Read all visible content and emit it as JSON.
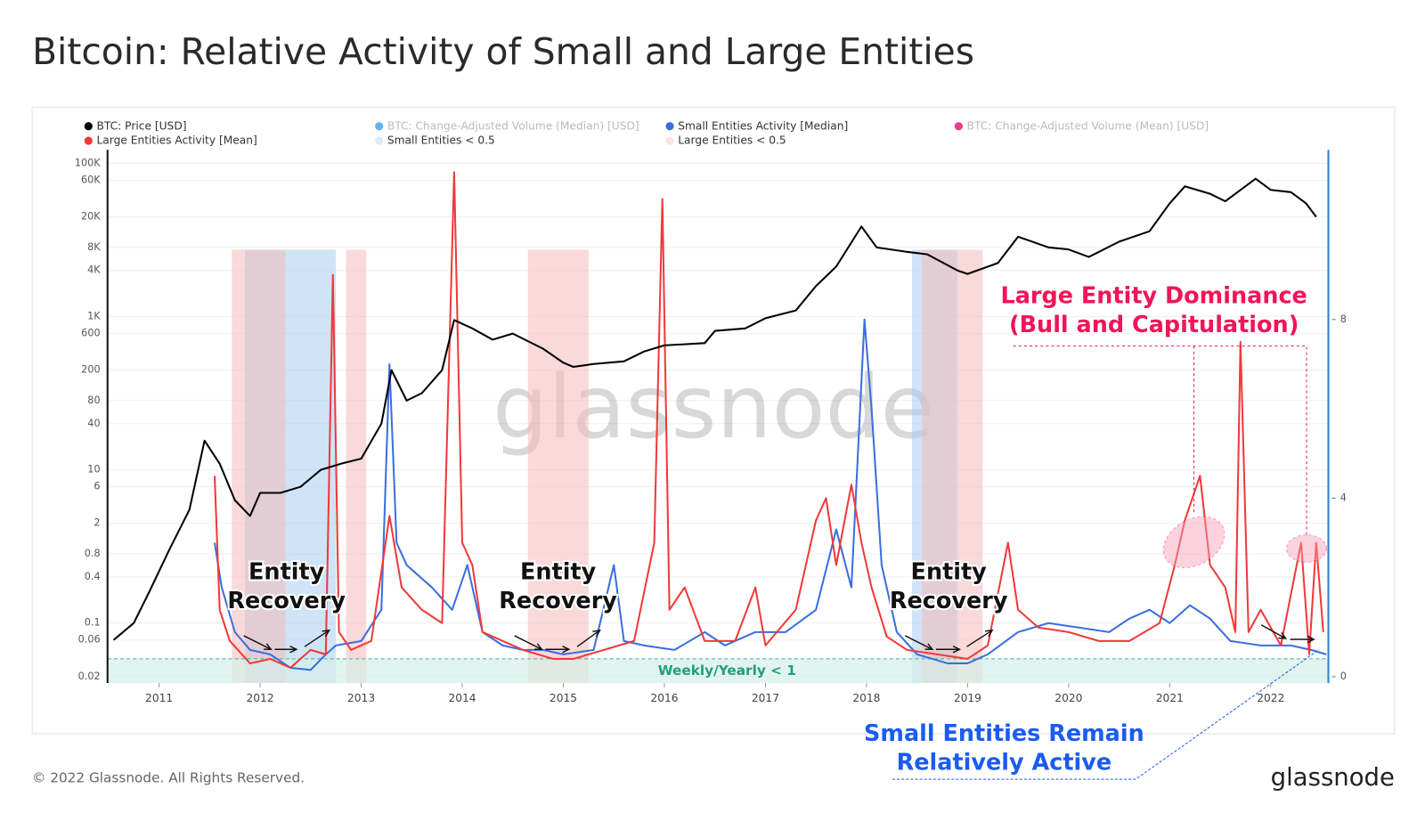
{
  "chart_data": {
    "type": "line",
    "title": "Bitcoin: Relative Activity of Small and Large Entities",
    "footer": "© 2022 Glassnode. All Rights Reserved.",
    "logo": "glassnode",
    "watermark": "glassnode",
    "xlim": [
      2010.49,
      2022.57
    ],
    "xticks": [
      2011,
      2012,
      2013,
      2014,
      2015,
      2016,
      2017,
      2018,
      2019,
      2020,
      2021,
      2022
    ],
    "ylog": true,
    "ylim": [
      0.0165,
      150000
    ],
    "yticks": [
      {
        "value": 100000,
        "label": "100K"
      },
      {
        "value": 60000,
        "label": "60K"
      },
      {
        "value": 20000,
        "label": "20K"
      },
      {
        "value": 8000,
        "label": "8K"
      },
      {
        "value": 4000,
        "label": "4K"
      },
      {
        "value": 1000,
        "label": "1K"
      },
      600,
      200,
      80,
      40,
      10,
      6,
      2,
      0.8,
      0.4,
      0.1,
      0.06,
      0.02
    ],
    "y2lim": [
      -0.14,
      11.8
    ],
    "y2ticks": [
      0,
      4,
      8
    ],
    "grid": true,
    "series": [
      {
        "name": "BTC: Price [USD]",
        "color": "#000000",
        "axis": "y",
        "x": [
          2010.55,
          2010.75,
          2010.9,
          2011.1,
          2011.3,
          2011.45,
          2011.6,
          2011.75,
          2011.9,
          2012.0,
          2012.2,
          2012.4,
          2012.6,
          2012.8,
          2013.0,
          2013.2,
          2013.3,
          2013.45,
          2013.6,
          2013.8,
          2013.92,
          2014.1,
          2014.3,
          2014.5,
          2014.8,
          2015.0,
          2015.1,
          2015.3,
          2015.6,
          2015.8,
          2016.0,
          2016.4,
          2016.5,
          2016.8,
          2017.0,
          2017.3,
          2017.5,
          2017.7,
          2017.95,
          2018.1,
          2018.4,
          2018.6,
          2018.9,
          2019.0,
          2019.3,
          2019.5,
          2019.8,
          2020.0,
          2020.2,
          2020.5,
          2020.8,
          2021.0,
          2021.15,
          2021.4,
          2021.55,
          2021.85,
          2022.0,
          2022.2,
          2022.35,
          2022.45
        ],
        "values": [
          0.06,
          0.1,
          0.25,
          0.9,
          3,
          24,
          12,
          4,
          2.5,
          5,
          5,
          6,
          10,
          12,
          14,
          40,
          200,
          80,
          100,
          200,
          900,
          700,
          500,
          600,
          380,
          250,
          220,
          240,
          260,
          350,
          420,
          450,
          650,
          700,
          950,
          1200,
          2500,
          4500,
          15000,
          8000,
          7000,
          6500,
          4000,
          3600,
          5000,
          11000,
          8000,
          7500,
          6000,
          9500,
          13000,
          30000,
          50000,
          40000,
          32000,
          63000,
          45000,
          42000,
          30000,
          20000
        ]
      },
      {
        "name": "Large Entities Activity [Mean]",
        "color": "#f03a3a",
        "axis": "y2",
        "x": [
          2011.55,
          2011.6,
          2011.7,
          2011.9,
          2012.1,
          2012.3,
          2012.5,
          2012.65,
          2012.72,
          2012.78,
          2012.9,
          2013.1,
          2013.28,
          2013.4,
          2013.6,
          2013.8,
          2013.92,
          2014.0,
          2014.1,
          2014.2,
          2014.4,
          2014.6,
          2014.9,
          2015.1,
          2015.4,
          2015.7,
          2015.9,
          2015.98,
          2016.05,
          2016.2,
          2016.4,
          2016.7,
          2016.9,
          2017.0,
          2017.3,
          2017.5,
          2017.6,
          2017.7,
          2017.85,
          2017.95,
          2018.05,
          2018.2,
          2018.4,
          2018.7,
          2019.0,
          2019.2,
          2019.4,
          2019.5,
          2019.7,
          2020.0,
          2020.3,
          2020.6,
          2020.9,
          2021.05,
          2021.15,
          2021.3,
          2021.4,
          2021.55,
          2021.65,
          2021.7,
          2021.78,
          2021.9,
          2022.1,
          2022.3,
          2022.38,
          2022.45,
          2022.52
        ],
        "values": [
          4.5,
          1.5,
          0.8,
          0.3,
          0.4,
          0.2,
          0.6,
          0.5,
          9.0,
          1.0,
          0.6,
          0.8,
          3.6,
          2.0,
          1.5,
          1.2,
          11.3,
          3.0,
          2.5,
          1.0,
          0.8,
          0.6,
          0.4,
          0.4,
          0.6,
          0.8,
          3.0,
          10.7,
          1.5,
          2.0,
          0.8,
          0.8,
          2.0,
          0.7,
          1.5,
          3.5,
          4.0,
          2.5,
          4.3,
          3.0,
          2.0,
          0.9,
          0.6,
          0.5,
          0.4,
          0.7,
          3.0,
          1.5,
          1.1,
          1.0,
          0.8,
          0.8,
          1.2,
          2.5,
          3.5,
          4.5,
          2.5,
          2.0,
          1.0,
          7.5,
          1.0,
          1.5,
          0.7,
          3.0,
          0.5,
          3.0,
          1.0
        ]
      },
      {
        "name": "Small Entities Activity [Median]",
        "color": "#3a6fe0",
        "axis": "y2",
        "x": [
          2011.55,
          2011.62,
          2011.75,
          2011.9,
          2012.1,
          2012.3,
          2012.5,
          2012.65,
          2012.75,
          2013.0,
          2013.2,
          2013.28,
          2013.35,
          2013.45,
          2013.7,
          2013.9,
          2014.05,
          2014.2,
          2014.4,
          2014.6,
          2014.8,
          2015.0,
          2015.3,
          2015.5,
          2015.6,
          2015.8,
          2016.1,
          2016.4,
          2016.6,
          2016.9,
          2017.2,
          2017.5,
          2017.7,
          2017.85,
          2017.98,
          2018.05,
          2018.15,
          2018.3,
          2018.5,
          2018.8,
          2019.0,
          2019.2,
          2019.5,
          2019.8,
          2020.1,
          2020.4,
          2020.6,
          2020.8,
          2021.0,
          2021.2,
          2021.4,
          2021.6,
          2021.9,
          2022.2,
          2022.4,
          2022.55
        ],
        "values": [
          3.0,
          2.0,
          1.0,
          0.6,
          0.5,
          0.2,
          0.15,
          0.5,
          0.7,
          0.8,
          1.5,
          7.0,
          3.0,
          2.5,
          2.0,
          1.5,
          2.5,
          1.0,
          0.7,
          0.6,
          0.6,
          0.5,
          0.6,
          2.5,
          0.8,
          0.7,
          0.6,
          1.0,
          0.7,
          1.0,
          1.0,
          1.5,
          3.3,
          2.0,
          8.0,
          6.0,
          2.5,
          1.0,
          0.5,
          0.3,
          0.3,
          0.5,
          1.0,
          1.2,
          1.1,
          1.0,
          1.3,
          1.5,
          1.2,
          1.6,
          1.3,
          0.8,
          0.7,
          0.7,
          0.6,
          0.5
        ]
      }
    ],
    "bands": [
      {
        "name": "Small Entities < 0.5",
        "color": "#a8cdf0",
        "ranges": [
          [
            2011.85,
            2012.75
          ],
          [
            2018.45,
            2018.9
          ]
        ]
      },
      {
        "name": "Large Entities < 0.5",
        "color": "#f4b9b9",
        "ranges": [
          [
            2011.72,
            2012.25
          ],
          [
            2012.85,
            2013.05
          ],
          [
            2014.65,
            2015.25
          ],
          [
            2018.55,
            2019.15
          ]
        ]
      }
    ],
    "inactive_legend": [
      {
        "name": "BTC: Change-Adjusted Volume (Median) [USD]",
        "color": "#62b3ee"
      },
      {
        "name": "BTC: Change-Adjusted Volume (Mean) [USD]",
        "color": "#e83e8c"
      }
    ],
    "zone": {
      "label": "Weekly/Yearly  < 1",
      "y2max": 0.4
    },
    "annotations": [
      {
        "lines": [
          "Entity",
          "Recovery"
        ],
        "color": "#111111"
      },
      {
        "lines": [
          "Entity",
          "Recovery"
        ],
        "color": "#111111"
      },
      {
        "lines": [
          "Entity",
          "Recovery"
        ],
        "color": "#111111"
      },
      {
        "lines": [
          "Large Entity Dominance",
          "(Bull and Capitulation)"
        ],
        "color": "#f0145a"
      },
      {
        "lines": [
          "Small Entities Remain",
          "Relatively Active"
        ],
        "color": "#1a5cf0"
      }
    ]
  }
}
